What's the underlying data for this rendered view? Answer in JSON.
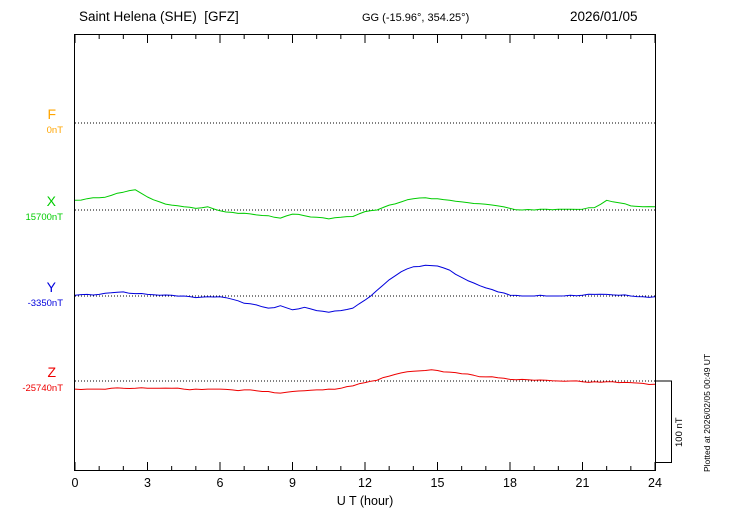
{
  "header": {
    "station": "Saint Helena (SHE)  [GFZ]",
    "coords": "GG (-15.96°, 354.25°)",
    "date": "2026/01/05"
  },
  "axis": {
    "xlabel": "U T (hour)",
    "xmin": 0,
    "xmax": 24,
    "major_ticks": [
      0,
      3,
      6,
      9,
      12,
      15,
      18,
      21,
      24
    ],
    "minor_tick_step_hours": 1
  },
  "scalebar": {
    "label": "100 nT",
    "span_nT": 100
  },
  "footer": {
    "plotted_at": "Plotted at 2026/02/05 00:49 UT"
  },
  "chart_data": {
    "type": "line",
    "title": "Saint Helena (SHE) [GFZ] magnetogram 2026/01/05",
    "xlabel": "U T (hour)",
    "x_range_hours": [
      0,
      24
    ],
    "units": "offsets_nT are deviations of each component from its printed baseline value",
    "x_hours": [
      0,
      0.5,
      1,
      1.5,
      2,
      2.5,
      3,
      3.5,
      4,
      4.5,
      5,
      5.5,
      6,
      6.5,
      7,
      7.5,
      8,
      8.5,
      9,
      9.5,
      10,
      10.5,
      11,
      11.5,
      12,
      12.5,
      13,
      13.5,
      14,
      14.5,
      15,
      15.5,
      16,
      16.5,
      17,
      17.5,
      18,
      18.5,
      19,
      19.5,
      20,
      20.5,
      21,
      21.5,
      22,
      22.5,
      23,
      23.5,
      24
    ],
    "series": [
      {
        "name": "F",
        "color": "#FFA500",
        "baseline_label": "0nT",
        "baseline_nT": 0,
        "visible": false,
        "offsets_nT": []
      },
      {
        "name": "X",
        "color": "#00CC00",
        "baseline_label": "15700nT",
        "baseline_nT": 15700,
        "visible": true,
        "offsets_nT": [
          12,
          14,
          15,
          18,
          22,
          25,
          16,
          10,
          6,
          4,
          2,
          4,
          -1,
          -3,
          -4,
          -6,
          -7,
          -10,
          -5,
          -7,
          -9,
          -11,
          -9,
          -8,
          -2,
          0,
          6,
          10,
          14,
          15,
          14,
          12,
          10,
          8,
          7,
          5,
          2,
          0,
          0,
          1,
          1,
          1,
          1,
          3,
          12,
          9,
          5,
          4,
          4
        ]
      },
      {
        "name": "Y",
        "color": "#0000DD",
        "baseline_label": "-3350nT",
        "baseline_nT": -3350,
        "visible": true,
        "offsets_nT": [
          1,
          2,
          2,
          4,
          5,
          3,
          2,
          1,
          1,
          0,
          -2,
          -1,
          -1,
          -4,
          -9,
          -11,
          -15,
          -12,
          -17,
          -14,
          -18,
          -20,
          -18,
          -15,
          -5,
          7,
          20,
          30,
          36,
          38,
          37,
          32,
          23,
          16,
          10,
          5,
          1,
          0,
          0,
          0,
          0,
          1,
          1,
          2,
          2,
          1,
          0,
          -1,
          -1
        ]
      },
      {
        "name": "Z",
        "color": "#EE0000",
        "baseline_label": "-25740nT",
        "baseline_nT": -25740,
        "visible": true,
        "offsets_nT": [
          -10,
          -10,
          -10,
          -9,
          -9,
          -9,
          -9,
          -9,
          -9,
          -10,
          -10,
          -10,
          -10,
          -11,
          -11,
          -12,
          -13,
          -15,
          -13,
          -12,
          -11,
          -10,
          -9,
          -6,
          -2,
          1,
          6,
          10,
          12,
          13,
          13,
          11,
          9,
          7,
          5,
          4,
          2,
          2,
          1,
          1,
          0,
          0,
          -1,
          -1,
          -1,
          -2,
          -2,
          -3,
          -4
        ]
      }
    ]
  }
}
